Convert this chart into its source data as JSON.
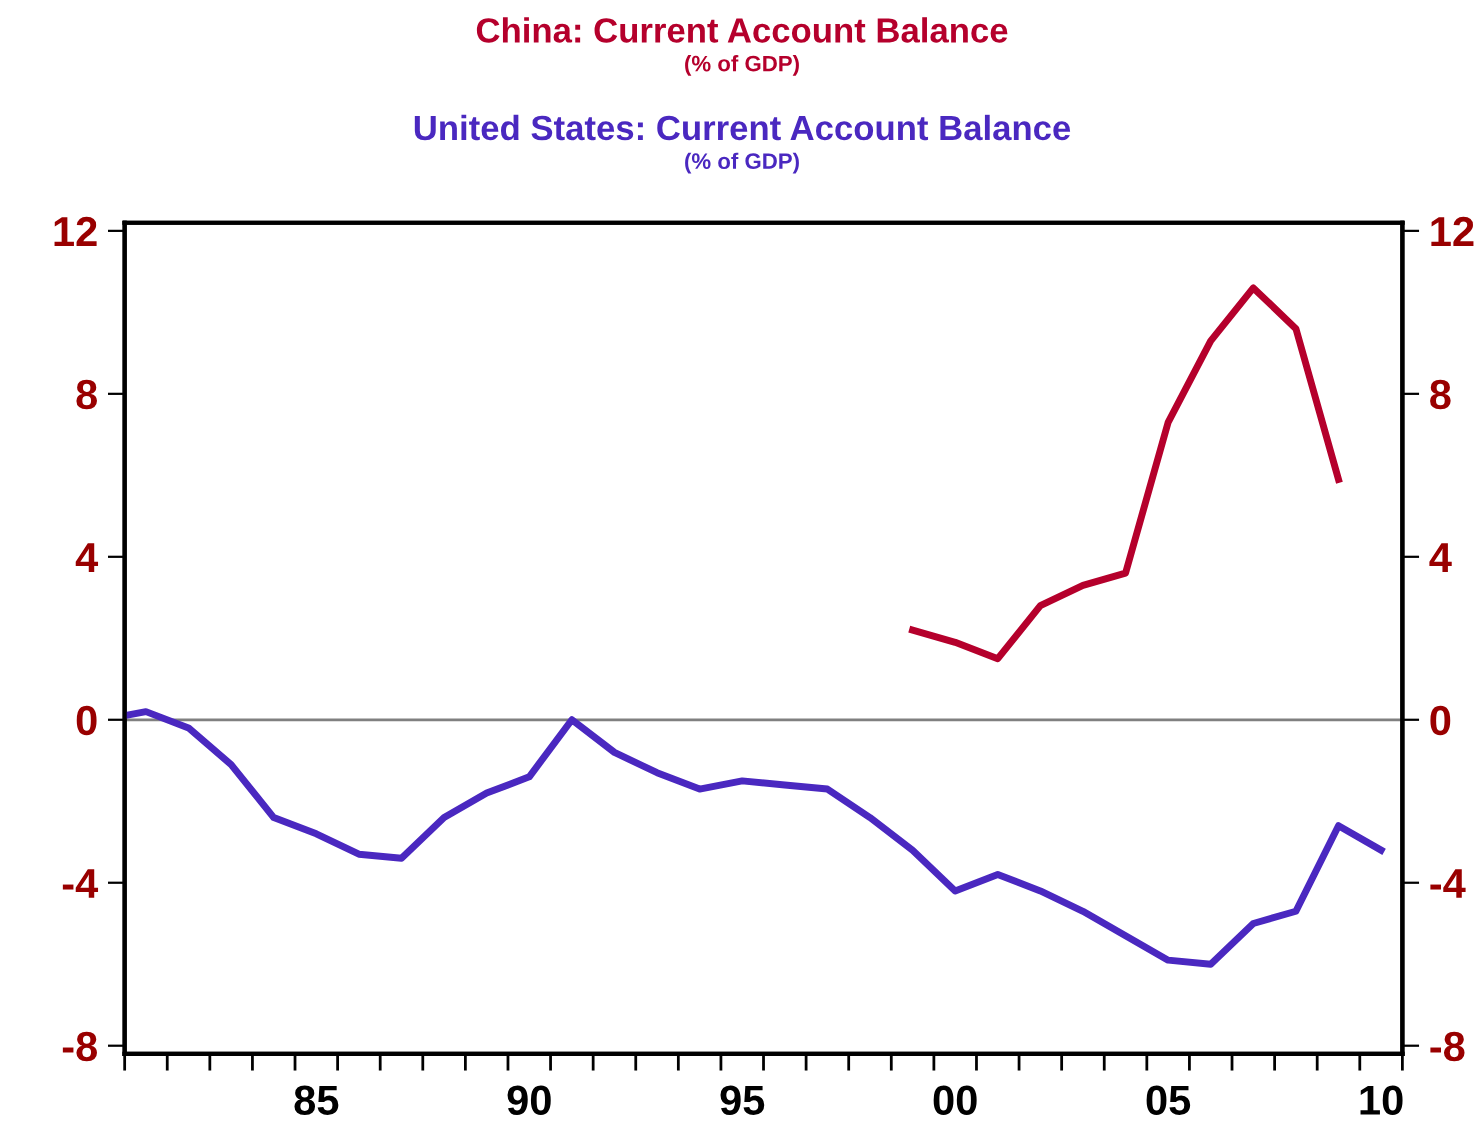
{
  "chart_data": {
    "type": "line",
    "series": [
      {
        "name": "China: Current Account Balance",
        "color": "#b5002c",
        "x": [
          1999,
          2000,
          2001,
          2002,
          2003,
          2004,
          2005,
          2006,
          2007,
          2008,
          2009
        ],
        "values": [
          2.2,
          1.9,
          1.5,
          2.8,
          3.3,
          3.6,
          7.3,
          9.3,
          10.6,
          9.6,
          5.9
        ]
      },
      {
        "name": "United States: Current Account Balance",
        "color": "#4a28c0",
        "x": [
          1980.5,
          1981,
          1982,
          1983,
          1984,
          1985,
          1986,
          1987,
          1988,
          1989,
          1990,
          1991,
          1992,
          1993,
          1994,
          1995,
          1996,
          1997,
          1998,
          1999,
          2000,
          2001,
          2002,
          2003,
          2004,
          2005,
          2006,
          2007,
          2008,
          2009,
          2010
        ],
        "values": [
          0.1,
          0.2,
          -0.2,
          -1.1,
          -2.4,
          -2.8,
          -3.3,
          -3.4,
          -2.4,
          -1.8,
          -1.4,
          0.0,
          -0.8,
          -1.3,
          -1.7,
          -1.5,
          -1.6,
          -1.7,
          -2.4,
          -3.2,
          -4.2,
          -3.8,
          -4.2,
          -4.7,
          -5.3,
          -5.9,
          -6.0,
          -5.0,
          -4.7,
          -2.6,
          -3.2
        ]
      }
    ],
    "annotations": [
      "(% of GDP)",
      "(% of GDP)"
    ],
    "legend": "top",
    "xlim": [
      1980.5,
      2010.5
    ],
    "xticks": [
      {
        "value": 1980.5,
        "label": null
      },
      {
        "value": 1981.5,
        "label": null
      },
      {
        "value": 1982.5,
        "label": null
      },
      {
        "value": 1983.5,
        "label": null
      },
      {
        "value": 1984.5,
        "label": null
      },
      {
        "value": 1985,
        "label": "85"
      },
      {
        "value": 1985.5,
        "label": null
      },
      {
        "value": 1986.5,
        "label": null
      },
      {
        "value": 1987.5,
        "label": null
      },
      {
        "value": 1988.5,
        "label": null
      },
      {
        "value": 1989.5,
        "label": null
      },
      {
        "value": 1990,
        "label": "90"
      },
      {
        "value": 1990.5,
        "label": null
      },
      {
        "value": 1991.5,
        "label": null
      },
      {
        "value": 1992.5,
        "label": null
      },
      {
        "value": 1993.5,
        "label": null
      },
      {
        "value": 1994.5,
        "label": null
      },
      {
        "value": 1995,
        "label": "95"
      },
      {
        "value": 1995.5,
        "label": null
      },
      {
        "value": 1996.5,
        "label": null
      },
      {
        "value": 1997.5,
        "label": null
      },
      {
        "value": 1998.5,
        "label": null
      },
      {
        "value": 1999.5,
        "label": null
      },
      {
        "value": 2000,
        "label": "00"
      },
      {
        "value": 2000.5,
        "label": null
      },
      {
        "value": 2001.5,
        "label": null
      },
      {
        "value": 2002.5,
        "label": null
      },
      {
        "value": 2003.5,
        "label": null
      },
      {
        "value": 2004.5,
        "label": null
      },
      {
        "value": 2005,
        "label": "05"
      },
      {
        "value": 2005.5,
        "label": null
      },
      {
        "value": 2006.5,
        "label": null
      },
      {
        "value": 2007.5,
        "label": null
      },
      {
        "value": 2008.5,
        "label": null
      },
      {
        "value": 2009.5,
        "label": null
      },
      {
        "value": 2010,
        "label": "10"
      },
      {
        "value": 2010.5,
        "label": null
      }
    ],
    "ylim": [
      -8.2,
      12.2
    ],
    "yticks": [
      -8,
      -4,
      0,
      4,
      8,
      12
    ],
    "y2lim": [
      -8.2,
      12.2
    ],
    "y2ticks": [
      -8,
      -4,
      0,
      4,
      8,
      12
    ],
    "ref_lines": [
      {
        "axis": "y",
        "value": 0,
        "color": "#808080"
      }
    ],
    "grid": false,
    "line_style": "solid"
  }
}
